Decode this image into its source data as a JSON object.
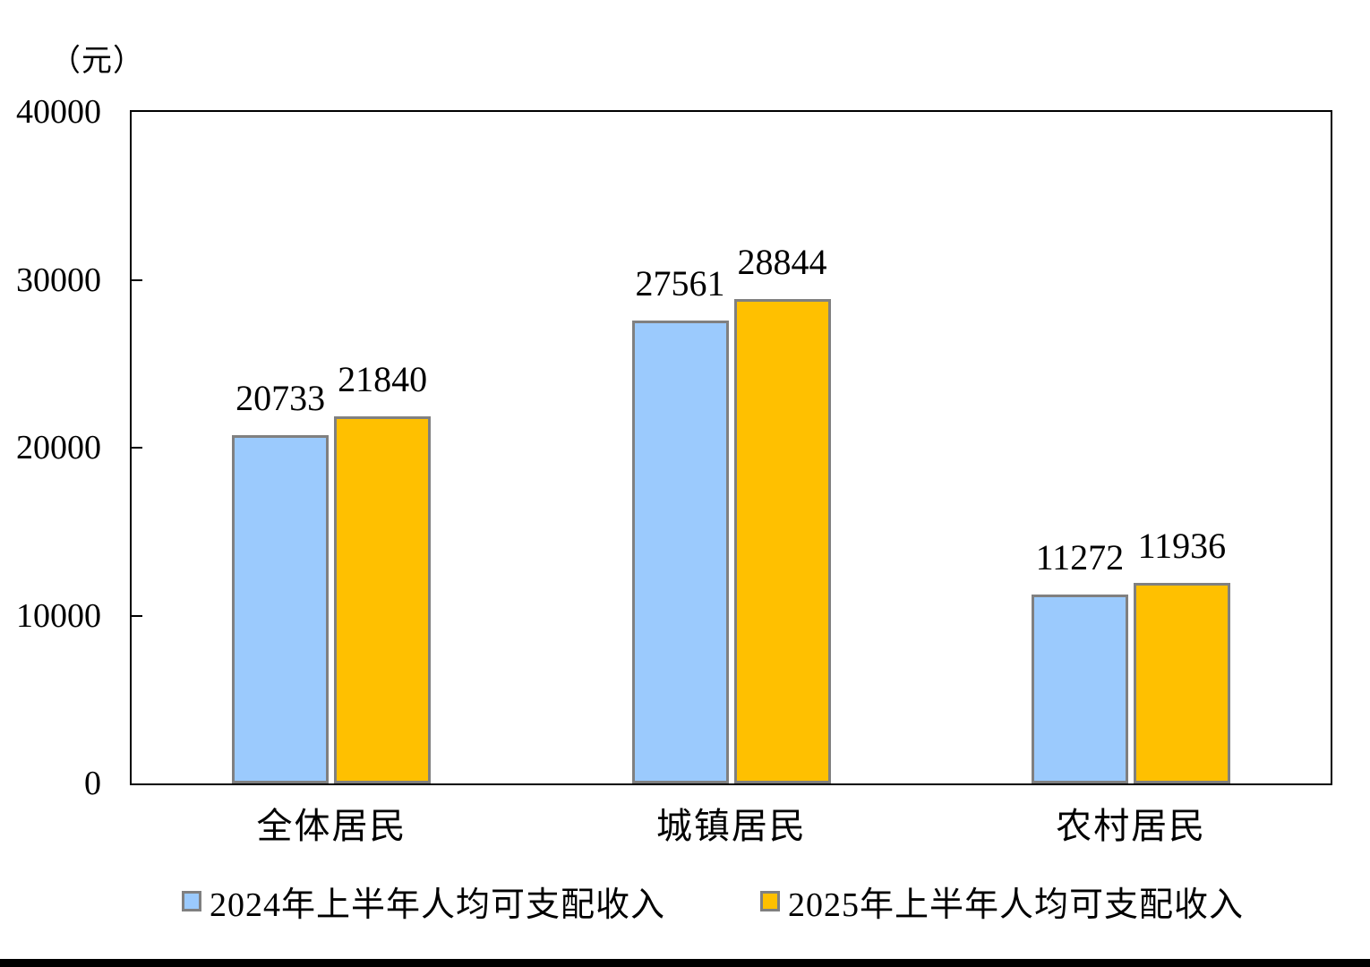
{
  "chart_data": {
    "type": "bar",
    "title": "",
    "unit_label": "（元）",
    "categories": [
      "全体居民",
      "城镇居民",
      "农村居民"
    ],
    "series": [
      {
        "name": "2024年上半年人均可支配收入",
        "color": "#9BCAFD",
        "border_color": "#808080",
        "values": [
          20733,
          27561,
          11272
        ]
      },
      {
        "name": "2025年上半年人均可支配收入",
        "color": "#FFC000",
        "border_color": "#808080",
        "values": [
          21840,
          28844,
          11936
        ]
      }
    ],
    "ylim": [
      0,
      40000
    ],
    "yticks": [
      0,
      10000,
      20000,
      30000,
      40000
    ],
    "grid": false,
    "axis_color": "#000000",
    "legend_position": "bottom",
    "bar_value_labels_shown": true
  }
}
